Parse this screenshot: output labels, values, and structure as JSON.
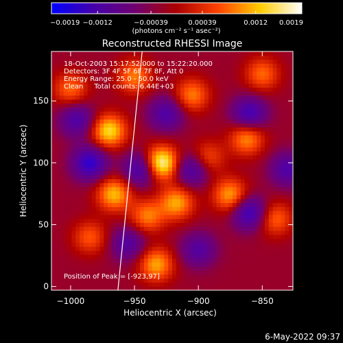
{
  "chart_data": {
    "type": "heatmap",
    "title": "Reconstructed RHESSI Image",
    "xlabel": "Heliocentric X (arcsec)",
    "ylabel": "Heliocentric Y (arcsec)",
    "xlim": [
      -1015,
      -826
    ],
    "ylim": [
      -3,
      190
    ],
    "xticks": [
      -1000,
      -950,
      -900,
      -850
    ],
    "xtick_labels": [
      "−1000",
      "−950",
      "−900",
      "−850"
    ],
    "yticks": [
      0,
      50,
      100,
      150
    ],
    "ytick_labels": [
      "0",
      "50",
      "100",
      "150"
    ],
    "colorbar": {
      "range": [
        -0.0019,
        0.0019
      ],
      "ticks": [
        -0.0019,
        -0.0012,
        -0.00039,
        0.00039,
        0.0012,
        0.0019
      ],
      "tick_labels": [
        "−0.0019",
        "−0.0012",
        "−0.00039",
        "0.00039",
        "0.0012",
        "0.0019"
      ],
      "units": "(photons cm⁻² s⁻¹ asec⁻²)",
      "colors": [
        "#0000ff",
        "#4400aa",
        "#700070",
        "#aa0000",
        "#ff4400",
        "#ffcc00",
        "#ffffff"
      ]
    },
    "peaks": [
      {
        "x": -929,
        "y": 100,
        "value": 0.0019
      },
      {
        "x": -970,
        "y": 126,
        "value": 0.0015
      },
      {
        "x": -966,
        "y": 75,
        "value": 0.0013
      },
      {
        "x": -917,
        "y": 68,
        "value": 0.0012
      },
      {
        "x": -893,
        "y": 104,
        "value": 0.0008
      },
      {
        "x": -875,
        "y": 74,
        "value": 0.0012
      },
      {
        "x": -940,
        "y": 57,
        "value": 0.001
      },
      {
        "x": -933,
        "y": 18,
        "value": 0.0012
      },
      {
        "x": -985,
        "y": 40,
        "value": 0.0008
      },
      {
        "x": -862,
        "y": 120,
        "value": 0.0011
      },
      {
        "x": -905,
        "y": 155,
        "value": 0.001
      },
      {
        "x": -950,
        "y": 170,
        "value": 0.001
      },
      {
        "x": -1000,
        "y": 160,
        "value": 0.0009
      },
      {
        "x": -850,
        "y": 172,
        "value": 0.0009
      },
      {
        "x": -840,
        "y": 55,
        "value": 0.0009
      },
      {
        "x": -985,
        "y": 100,
        "value": -0.0014
      },
      {
        "x": -945,
        "y": 95,
        "value": -0.0012
      },
      {
        "x": -905,
        "y": 95,
        "value": -0.0011
      },
      {
        "x": -860,
        "y": 60,
        "value": -0.0013
      },
      {
        "x": -860,
        "y": 140,
        "value": -0.0012
      },
      {
        "x": -995,
        "y": 135,
        "value": -0.001
      },
      {
        "x": -925,
        "y": 140,
        "value": -0.001
      },
      {
        "x": -900,
        "y": 30,
        "value": -0.0009
      },
      {
        "x": -955,
        "y": 35,
        "value": -0.0009
      },
      {
        "x": -830,
        "y": 95,
        "value": -0.001
      }
    ],
    "limb_line": [
      [
        -963,
        -3
      ],
      [
        -944,
        190
      ]
    ],
    "annotations": {
      "time": "18-Oct-2003 15:17:52.000 to 15:22:20.000",
      "detectors": "Detectors: 3F 4F 5F 6F 7F 8F, Att 0",
      "energy": "Energy Range: 25.0 - 50.0 keV",
      "clean": "Clean     Total counts: 6.44E+03",
      "peak": "Position of Peak = [-923,97]"
    }
  },
  "footer": {
    "timestamp": "6-May-2022 09:37"
  }
}
